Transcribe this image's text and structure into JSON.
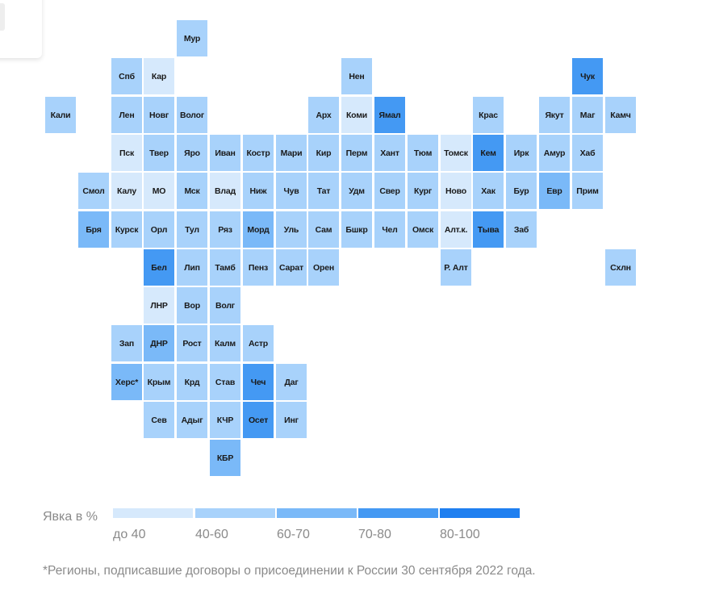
{
  "map_data": {
    "colors": {
      "1": "#d6e9fc",
      "2": "#a8d2fb",
      "3": "#7ab9f8",
      "4": "#4499f3",
      "5": "#1f7ff0"
    },
    "regions": [
      {
        "label": "Мур",
        "col": 5,
        "row": 0,
        "bin": 2
      },
      {
        "label": "Спб",
        "col": 3,
        "row": 1,
        "bin": 2
      },
      {
        "label": "Кар",
        "col": 4,
        "row": 1,
        "bin": 1
      },
      {
        "label": "Нен",
        "col": 10,
        "row": 1,
        "bin": 2
      },
      {
        "label": "Чук",
        "col": 17,
        "row": 1,
        "bin": 4
      },
      {
        "label": "Кали",
        "col": 1,
        "row": 2,
        "bin": 2
      },
      {
        "label": "Лен",
        "col": 3,
        "row": 2,
        "bin": 2
      },
      {
        "label": "Новг",
        "col": 4,
        "row": 2,
        "bin": 2
      },
      {
        "label": "Волог",
        "col": 5,
        "row": 2,
        "bin": 2
      },
      {
        "label": "Арх",
        "col": 9,
        "row": 2,
        "bin": 2
      },
      {
        "label": "Коми",
        "col": 10,
        "row": 2,
        "bin": 1
      },
      {
        "label": "Ямал",
        "col": 11,
        "row": 2,
        "bin": 4
      },
      {
        "label": "Крас",
        "col": 14,
        "row": 2,
        "bin": 2
      },
      {
        "label": "Якут",
        "col": 16,
        "row": 2,
        "bin": 2
      },
      {
        "label": "Маг",
        "col": 17,
        "row": 2,
        "bin": 2
      },
      {
        "label": "Камч",
        "col": 18,
        "row": 2,
        "bin": 2
      },
      {
        "label": "Пск",
        "col": 3,
        "row": 3,
        "bin": 1
      },
      {
        "label": "Твер",
        "col": 4,
        "row": 3,
        "bin": 2
      },
      {
        "label": "Яро",
        "col": 5,
        "row": 3,
        "bin": 2
      },
      {
        "label": "Иван",
        "col": 6,
        "row": 3,
        "bin": 2
      },
      {
        "label": "Костр",
        "col": 7,
        "row": 3,
        "bin": 2
      },
      {
        "label": "Мари",
        "col": 8,
        "row": 3,
        "bin": 2
      },
      {
        "label": "Кир",
        "col": 9,
        "row": 3,
        "bin": 2
      },
      {
        "label": "Перм",
        "col": 10,
        "row": 3,
        "bin": 2
      },
      {
        "label": "Хант",
        "col": 11,
        "row": 3,
        "bin": 2
      },
      {
        "label": "Тюм",
        "col": 12,
        "row": 3,
        "bin": 2
      },
      {
        "label": "Томск",
        "col": 13,
        "row": 3,
        "bin": 1
      },
      {
        "label": "Кем",
        "col": 14,
        "row": 3,
        "bin": 4
      },
      {
        "label": "Ирк",
        "col": 15,
        "row": 3,
        "bin": 2
      },
      {
        "label": "Амур",
        "col": 16,
        "row": 3,
        "bin": 2
      },
      {
        "label": "Хаб",
        "col": 17,
        "row": 3,
        "bin": 2
      },
      {
        "label": "Смол",
        "col": 2,
        "row": 4,
        "bin": 2
      },
      {
        "label": "Калу",
        "col": 3,
        "row": 4,
        "bin": 1
      },
      {
        "label": "МО",
        "col": 4,
        "row": 4,
        "bin": 1
      },
      {
        "label": "Мск",
        "col": 5,
        "row": 4,
        "bin": 2
      },
      {
        "label": "Влад",
        "col": 6,
        "row": 4,
        "bin": 1
      },
      {
        "label": "Ниж",
        "col": 7,
        "row": 4,
        "bin": 2
      },
      {
        "label": "Чув",
        "col": 8,
        "row": 4,
        "bin": 2
      },
      {
        "label": "Тат",
        "col": 9,
        "row": 4,
        "bin": 2
      },
      {
        "label": "Удм",
        "col": 10,
        "row": 4,
        "bin": 2
      },
      {
        "label": "Свер",
        "col": 11,
        "row": 4,
        "bin": 2
      },
      {
        "label": "Кург",
        "col": 12,
        "row": 4,
        "bin": 2
      },
      {
        "label": "Ново",
        "col": 13,
        "row": 4,
        "bin": 1
      },
      {
        "label": "Хак",
        "col": 14,
        "row": 4,
        "bin": 2
      },
      {
        "label": "Бур",
        "col": 15,
        "row": 4,
        "bin": 2
      },
      {
        "label": "Евр",
        "col": 16,
        "row": 4,
        "bin": 3
      },
      {
        "label": "Прим",
        "col": 17,
        "row": 4,
        "bin": 2
      },
      {
        "label": "Бря",
        "col": 2,
        "row": 5,
        "bin": 3
      },
      {
        "label": "Курск",
        "col": 3,
        "row": 5,
        "bin": 2
      },
      {
        "label": "Орл",
        "col": 4,
        "row": 5,
        "bin": 2
      },
      {
        "label": "Тул",
        "col": 5,
        "row": 5,
        "bin": 2
      },
      {
        "label": "Ряз",
        "col": 6,
        "row": 5,
        "bin": 2
      },
      {
        "label": "Морд",
        "col": 7,
        "row": 5,
        "bin": 3
      },
      {
        "label": "Уль",
        "col": 8,
        "row": 5,
        "bin": 2
      },
      {
        "label": "Сам",
        "col": 9,
        "row": 5,
        "bin": 2
      },
      {
        "label": "Бшкр",
        "col": 10,
        "row": 5,
        "bin": 2
      },
      {
        "label": "Чел",
        "col": 11,
        "row": 5,
        "bin": 2
      },
      {
        "label": "Омск",
        "col": 12,
        "row": 5,
        "bin": 2
      },
      {
        "label": "Алт.к.",
        "col": 13,
        "row": 5,
        "bin": 1
      },
      {
        "label": "Тыва",
        "col": 14,
        "row": 5,
        "bin": 4
      },
      {
        "label": "Заб",
        "col": 15,
        "row": 5,
        "bin": 2
      },
      {
        "label": "Бел",
        "col": 4,
        "row": 6,
        "bin": 4
      },
      {
        "label": "Лип",
        "col": 5,
        "row": 6,
        "bin": 2
      },
      {
        "label": "Тамб",
        "col": 6,
        "row": 6,
        "bin": 2
      },
      {
        "label": "Пенз",
        "col": 7,
        "row": 6,
        "bin": 2
      },
      {
        "label": "Сарат",
        "col": 8,
        "row": 6,
        "bin": 2
      },
      {
        "label": "Орен",
        "col": 9,
        "row": 6,
        "bin": 2
      },
      {
        "label": "Р. Алт",
        "col": 13,
        "row": 6,
        "bin": 2
      },
      {
        "label": "Схлн",
        "col": 18,
        "row": 6,
        "bin": 2
      },
      {
        "label": "ЛНР",
        "col": 4,
        "row": 7,
        "bin": 1
      },
      {
        "label": "Вор",
        "col": 5,
        "row": 7,
        "bin": 2
      },
      {
        "label": "Волг",
        "col": 6,
        "row": 7,
        "bin": 2
      },
      {
        "label": "Зап",
        "col": 3,
        "row": 8,
        "bin": 2
      },
      {
        "label": "ДНР",
        "col": 4,
        "row": 8,
        "bin": 3
      },
      {
        "label": "Рост",
        "col": 5,
        "row": 8,
        "bin": 2
      },
      {
        "label": "Калм",
        "col": 6,
        "row": 8,
        "bin": 2
      },
      {
        "label": "Астр",
        "col": 7,
        "row": 8,
        "bin": 2
      },
      {
        "label": "Херс*",
        "col": 3,
        "row": 9,
        "bin": 3
      },
      {
        "label": "Крым",
        "col": 4,
        "row": 9,
        "bin": 2
      },
      {
        "label": "Крд",
        "col": 5,
        "row": 9,
        "bin": 2
      },
      {
        "label": "Став",
        "col": 6,
        "row": 9,
        "bin": 2
      },
      {
        "label": "Чеч",
        "col": 7,
        "row": 9,
        "bin": 4
      },
      {
        "label": "Даг",
        "col": 8,
        "row": 9,
        "bin": 2
      },
      {
        "label": "Сев",
        "col": 4,
        "row": 10,
        "bin": 2
      },
      {
        "label": "Адыг",
        "col": 5,
        "row": 10,
        "bin": 2
      },
      {
        "label": "КЧР",
        "col": 6,
        "row": 10,
        "bin": 2
      },
      {
        "label": "Осет",
        "col": 7,
        "row": 10,
        "bin": 4
      },
      {
        "label": "Инг",
        "col": 8,
        "row": 10,
        "bin": 2
      },
      {
        "label": "КБР",
        "col": 6,
        "row": 11,
        "bin": 3
      }
    ]
  },
  "legend": {
    "title": "Явка в %",
    "bins": [
      {
        "label": "до 40",
        "color": "#d6e9fc"
      },
      {
        "label": "40-60",
        "color": "#a8d2fb"
      },
      {
        "label": "60-70",
        "color": "#7ab9f8"
      },
      {
        "label": "70-80",
        "color": "#4499f3"
      },
      {
        "label": "80-100",
        "color": "#1f7ff0"
      }
    ]
  },
  "footnote": "*Регионы, подписавшие договоры о присоединении к России 30 сентября 2022 года."
}
